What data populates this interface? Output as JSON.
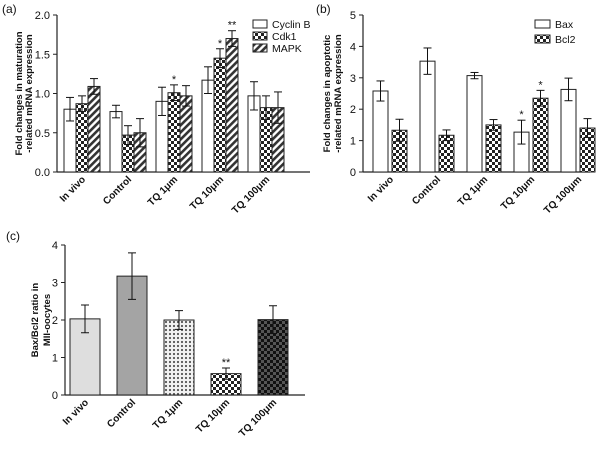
{
  "chart_data": [
    {
      "panel": "(a)",
      "type": "bar",
      "ylabel": "Fold changes in maturation\n-related mRNA expression",
      "ylim": [
        0,
        2.0
      ],
      "yticks": [
        "0.0",
        "0.5",
        "1.0",
        "1.5",
        "2.0"
      ],
      "categories": [
        "In vivo",
        "Control",
        "TQ 1μm",
        "TQ 10μm",
        "TQ 100μm"
      ],
      "legend_placement": "top-right",
      "series": [
        {
          "name": "Cyclin B",
          "pattern": "white",
          "values": [
            0.8,
            0.77,
            0.9,
            1.17,
            0.97
          ],
          "errors": [
            0.15,
            0.08,
            0.18,
            0.17,
            0.18
          ],
          "marks": [
            "",
            "",
            "",
            "",
            ""
          ]
        },
        {
          "name": "Cdk1",
          "pattern": "checker",
          "values": [
            0.87,
            0.47,
            1.01,
            1.45,
            0.82
          ],
          "errors": [
            0.1,
            0.12,
            0.1,
            0.12,
            0.15
          ],
          "marks": [
            "",
            "",
            "*",
            "*",
            ""
          ]
        },
        {
          "name": "MAPK",
          "pattern": "diagonal",
          "values": [
            1.09,
            0.5,
            0.97,
            1.7,
            0.82
          ],
          "errors": [
            0.1,
            0.18,
            0.13,
            0.1,
            0.2
          ],
          "marks": [
            "",
            "",
            "",
            "**",
            ""
          ]
        }
      ]
    },
    {
      "panel": "(b)",
      "type": "bar",
      "ylabel": "Fold changes in apoptotic\n-related mRNA expression",
      "ylim": [
        0,
        5
      ],
      "yticks": [
        "0",
        "1",
        "2",
        "3",
        "4",
        "5"
      ],
      "categories": [
        "In vivo",
        "Control",
        "TQ 1μm",
        "TQ 10μm",
        "TQ 100μm"
      ],
      "legend_placement": "top-right",
      "series": [
        {
          "name": "Bax",
          "pattern": "white",
          "values": [
            2.58,
            3.53,
            3.07,
            1.27,
            2.63
          ],
          "errors": [
            0.32,
            0.42,
            0.1,
            0.38,
            0.36
          ],
          "marks": [
            "",
            "",
            "",
            "*",
            ""
          ]
        },
        {
          "name": "Bcl2",
          "pattern": "checker",
          "values": [
            1.33,
            1.17,
            1.5,
            2.35,
            1.4
          ],
          "errors": [
            0.35,
            0.17,
            0.17,
            0.25,
            0.3
          ],
          "marks": [
            "",
            "",
            "",
            "*",
            ""
          ]
        }
      ]
    },
    {
      "panel": "(c)",
      "type": "bar",
      "ylabel": "Bax/Bcl2 ratio in\nMII-oocytes",
      "ylim": [
        0,
        4
      ],
      "yticks": [
        "0",
        "1",
        "2",
        "3",
        "4"
      ],
      "categories": [
        "In vivo",
        "Control",
        "TQ 1μm",
        "TQ 10μm",
        "TQ 100μm"
      ],
      "series": [
        {
          "name": "",
          "values": [
            2.03,
            3.17,
            2.0,
            0.57,
            2.01
          ],
          "errors": [
            0.37,
            0.62,
            0.25,
            0.15,
            0.37
          ],
          "marks": [
            "",
            "",
            "",
            "**",
            ""
          ],
          "fills": [
            "#dedede",
            "#a4a4a4",
            "dots",
            "checker",
            "darkcheck"
          ]
        }
      ]
    }
  ]
}
